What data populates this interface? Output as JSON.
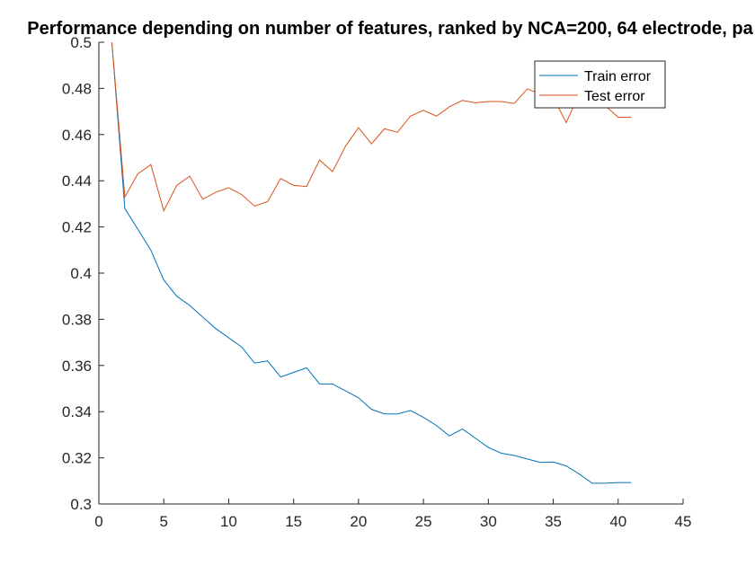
{
  "chart_data": {
    "type": "line",
    "title": "Performance depending on number of features, ranked by NCA=200, 64 electrode, pa",
    "xlabel": "",
    "ylabel": "",
    "xlim": [
      0,
      45
    ],
    "ylim": [
      0.3,
      0.5
    ],
    "xticks": [
      0,
      5,
      10,
      15,
      20,
      25,
      30,
      35,
      40,
      45
    ],
    "yticks": [
      0.3,
      0.32,
      0.34,
      0.36,
      0.38,
      0.4,
      0.42,
      0.44,
      0.46,
      0.48,
      0.5
    ],
    "ytick_labels": [
      "0.3",
      "0.32",
      "0.34",
      "0.36",
      "0.38",
      "0.4",
      "0.42",
      "0.44",
      "0.46",
      "0.48",
      "0.5"
    ],
    "grid": false,
    "legend_position": "top-right",
    "x": [
      1,
      2,
      3,
      4,
      5,
      6,
      7,
      8,
      9,
      10,
      11,
      12,
      13,
      14,
      15,
      16,
      17,
      18,
      19,
      20,
      21,
      22,
      23,
      24,
      25,
      26,
      27,
      28,
      29,
      30,
      31,
      32,
      33,
      34,
      35,
      36,
      37,
      38,
      39,
      40,
      41
    ],
    "series": [
      {
        "name": "Train error",
        "color": "#0072BD",
        "values": [
          0.5,
          0.428,
          0.419,
          0.41,
          0.397,
          0.39,
          0.386,
          0.381,
          0.376,
          0.372,
          0.368,
          0.361,
          0.362,
          0.355,
          0.357,
          0.359,
          0.352,
          0.352,
          0.349,
          0.346,
          0.341,
          0.339,
          0.339,
          0.3405,
          0.3375,
          0.334,
          0.3295,
          0.3325,
          0.3285,
          0.3245,
          0.322,
          0.321,
          0.3195,
          0.318,
          0.3182,
          0.3165,
          0.313,
          0.309,
          0.309,
          0.3093,
          0.3093
        ]
      },
      {
        "name": "Test error",
        "color": "#D95319",
        "values": [
          0.5,
          0.433,
          0.443,
          0.447,
          0.427,
          0.438,
          0.442,
          0.432,
          0.435,
          0.437,
          0.434,
          0.429,
          0.431,
          0.441,
          0.438,
          0.4375,
          0.449,
          0.444,
          0.455,
          0.463,
          0.456,
          0.4625,
          0.461,
          0.468,
          0.4705,
          0.468,
          0.472,
          0.4748,
          0.4738,
          0.4743,
          0.4743,
          0.4735,
          0.4798,
          0.4775,
          0.476,
          0.4652,
          0.4777,
          0.4765,
          0.4725,
          0.4675,
          0.4675
        ]
      }
    ]
  }
}
